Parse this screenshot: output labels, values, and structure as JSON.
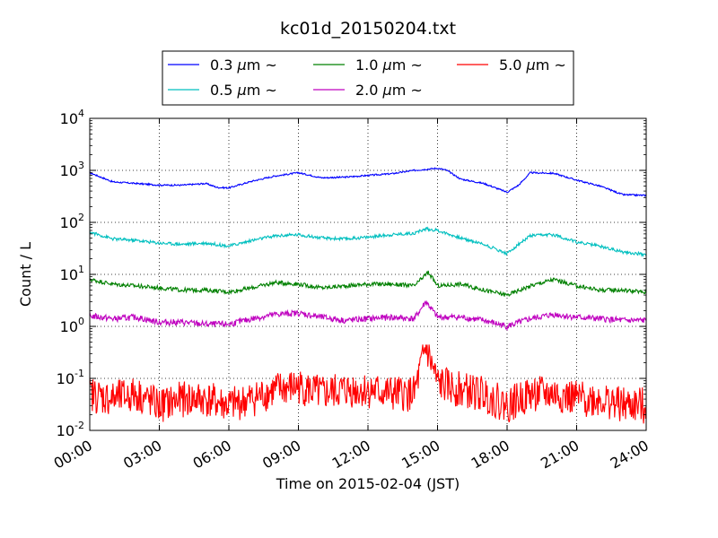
{
  "chart_data": {
    "type": "line",
    "title": "kc01d_20150204.txt",
    "xlabel": "Time on 2015-02-04 (JST)",
    "ylabel": "Count / L",
    "x_tick_labels": [
      "00:00",
      "03:00",
      "06:00",
      "09:00",
      "12:00",
      "15:00",
      "18:00",
      "21:00",
      "24:00"
    ],
    "y_scale": "log",
    "ylim": [
      0.01,
      10000
    ],
    "xlim_hours": [
      0,
      24
    ],
    "y_tick_labels": [
      {
        "base": "10",
        "exp": "-2"
      },
      {
        "base": "10",
        "exp": "-1"
      },
      {
        "base": "10",
        "exp": "0"
      },
      {
        "base": "10",
        "exp": "1"
      },
      {
        "base": "10",
        "exp": "2"
      },
      {
        "base": "10",
        "exp": "3"
      },
      {
        "base": "10",
        "exp": "4"
      }
    ],
    "grid": true,
    "legend": {
      "placement": "top",
      "suffix": "~",
      "unit": "μm"
    },
    "series": [
      {
        "name": "0.3",
        "color": "#0000ff",
        "hours": [
          0,
          1,
          2,
          3,
          4,
          5,
          5.5,
          6,
          7,
          8,
          9,
          10,
          11,
          12,
          13,
          14,
          15,
          15.4,
          16,
          17,
          18,
          18.5,
          19,
          20,
          21,
          22,
          23,
          24
        ],
        "values": [
          900,
          600,
          560,
          520,
          520,
          560,
          470,
          460,
          620,
          780,
          900,
          720,
          740,
          800,
          860,
          1000,
          1100,
          1000,
          680,
          560,
          380,
          520,
          900,
          880,
          650,
          500,
          340,
          330
        ]
      },
      {
        "name": "1.0",
        "color": "#008000",
        "hours": [
          0,
          1,
          2,
          3,
          4,
          5,
          6,
          7,
          8,
          9,
          10,
          11,
          12,
          13,
          14,
          14.6,
          15,
          16,
          17,
          18,
          19,
          20,
          21,
          22,
          23,
          24
        ],
        "values": [
          8,
          6.5,
          6,
          5.5,
          5,
          5,
          4.6,
          5.5,
          7,
          6.5,
          5.5,
          6,
          6.5,
          6.5,
          6,
          11,
          6,
          6.5,
          5,
          4,
          6,
          8,
          6,
          5,
          5,
          4.5
        ]
      },
      {
        "name": "5.0",
        "color": "#ff0000",
        "hours": [
          0,
          1,
          2,
          3,
          4,
          5,
          6,
          7,
          8,
          9,
          10,
          11,
          12,
          13,
          14,
          14.5,
          14.8,
          15,
          16,
          17,
          18,
          19,
          20,
          21,
          22,
          23,
          24
        ],
        "values": [
          0.05,
          0.04,
          0.05,
          0.03,
          0.04,
          0.04,
          0.03,
          0.04,
          0.06,
          0.07,
          0.05,
          0.06,
          0.06,
          0.05,
          0.05,
          0.4,
          0.15,
          0.08,
          0.06,
          0.05,
          0.03,
          0.05,
          0.05,
          0.04,
          0.04,
          0.03,
          0.03
        ]
      },
      {
        "name": "0.5",
        "color": "#00bfbf",
        "hours": [
          0,
          1,
          2,
          3,
          4,
          5,
          6,
          7,
          8,
          9,
          10,
          11,
          12,
          13,
          14,
          14.5,
          15,
          16,
          17,
          18,
          18.5,
          19,
          20,
          21,
          22,
          23,
          24
        ],
        "values": [
          65,
          48,
          45,
          40,
          38,
          40,
          35,
          45,
          55,
          58,
          50,
          48,
          52,
          58,
          62,
          75,
          70,
          50,
          38,
          25,
          38,
          55,
          58,
          42,
          35,
          27,
          24
        ]
      },
      {
        "name": "2.0",
        "color": "#bf00bf",
        "hours": [
          0,
          1,
          2,
          3,
          4,
          5,
          6,
          7,
          8,
          9,
          10,
          11,
          12,
          13,
          14,
          14.5,
          15,
          16,
          17,
          18,
          19,
          20,
          21,
          22,
          23,
          24
        ],
        "values": [
          1.6,
          1.4,
          1.5,
          1.2,
          1.2,
          1.1,
          1.1,
          1.4,
          1.7,
          1.8,
          1.5,
          1.3,
          1.4,
          1.5,
          1.4,
          3.0,
          1.5,
          1.5,
          1.3,
          1.0,
          1.4,
          1.7,
          1.5,
          1.4,
          1.3,
          1.3
        ]
      }
    ]
  }
}
